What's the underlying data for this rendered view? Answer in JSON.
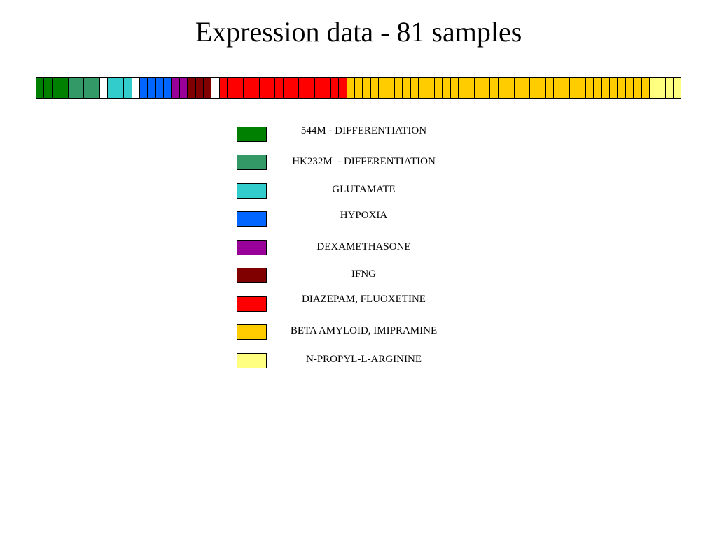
{
  "title": "Expression data - 81 samples",
  "legend": [
    {
      "key": "544m",
      "label": "544M - DIFFERENTIATION",
      "color": "#008000"
    },
    {
      "key": "hk232m",
      "label": "HK232M  - DIFFERENTIATION",
      "color": "#339966"
    },
    {
      "key": "glut",
      "label": "GLUTAMATE",
      "color": "#33CCCC"
    },
    {
      "key": "hyp",
      "label": "HYPOXIA",
      "color": "#0066FF"
    },
    {
      "key": "dex",
      "label": "DEXAMETHASONE",
      "color": "#990099"
    },
    {
      "key": "ifng",
      "label": "IFNG",
      "color": "#800000"
    },
    {
      "key": "diaz",
      "label": "DIAZEPAM, FLUOXETINE",
      "color": "#FF0000"
    },
    {
      "key": "beta",
      "label": "BETA AMYLOID, IMIPRAMINE",
      "color": "#FFCC00"
    },
    {
      "key": "npla",
      "label": "N-PROPYL-L-ARGININE",
      "color": "#FFFF80"
    }
  ],
  "samples": {
    "count": 81,
    "blank_color": "#FFFFFF",
    "groups": [
      {
        "key": "544m",
        "n": 4
      },
      {
        "key": "hk232m",
        "n": 4
      },
      {
        "key": "blank",
        "n": 1
      },
      {
        "key": "glut",
        "n": 3
      },
      {
        "key": "blank",
        "n": 1
      },
      {
        "key": "hyp",
        "n": 4
      },
      {
        "key": "dex",
        "n": 2
      },
      {
        "key": "ifng",
        "n": 3
      },
      {
        "key": "blank",
        "n": 1
      },
      {
        "key": "diaz",
        "n": 16
      },
      {
        "key": "beta",
        "n": 38
      },
      {
        "key": "npla",
        "n": 4
      }
    ]
  }
}
